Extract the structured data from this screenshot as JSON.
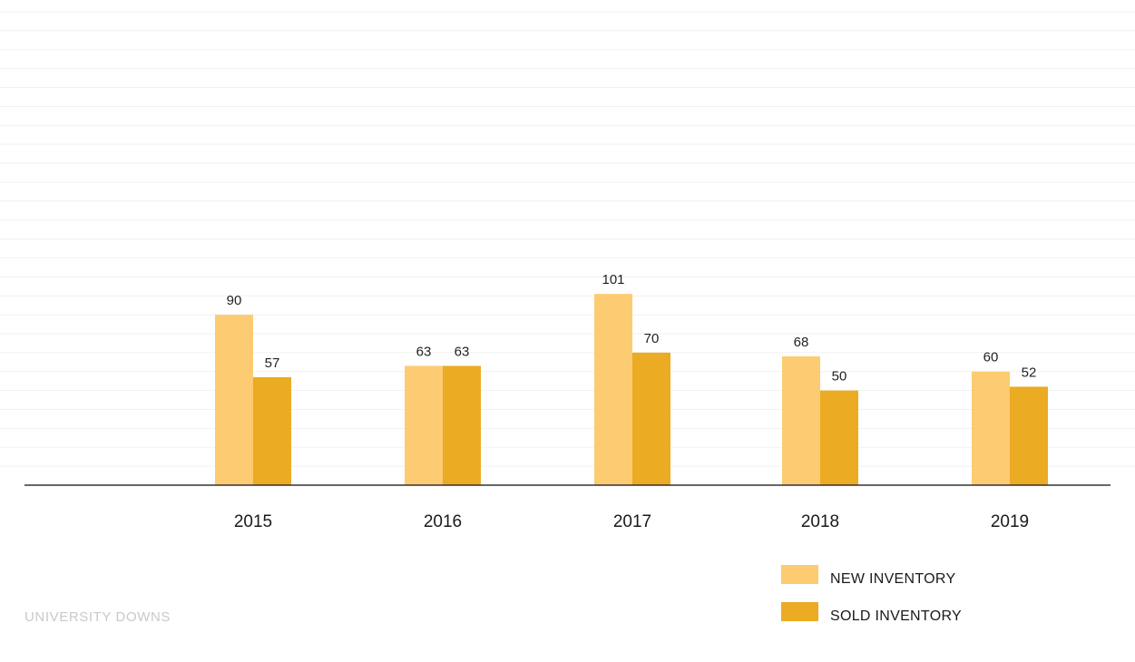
{
  "footer": {
    "text": "UNIVERSITY DOWNS"
  },
  "colors": {
    "new": "#FDCB72",
    "sold": "#EBAB22",
    "axis": "#333333",
    "grid": "#f1f1f1"
  },
  "chart_data": {
    "type": "bar",
    "categories": [
      "2015",
      "2016",
      "2017",
      "2018",
      "2019"
    ],
    "series": [
      {
        "name": "NEW INVENTORY",
        "values": [
          90,
          63,
          101,
          68,
          60
        ]
      },
      {
        "name": "SOLD INVENTORY",
        "values": [
          57,
          63,
          70,
          50,
          52
        ]
      }
    ],
    "ylim": [
      0,
      250
    ],
    "grid": true,
    "legend_position": "bottom-right",
    "title": "",
    "xlabel": "",
    "ylabel": ""
  }
}
